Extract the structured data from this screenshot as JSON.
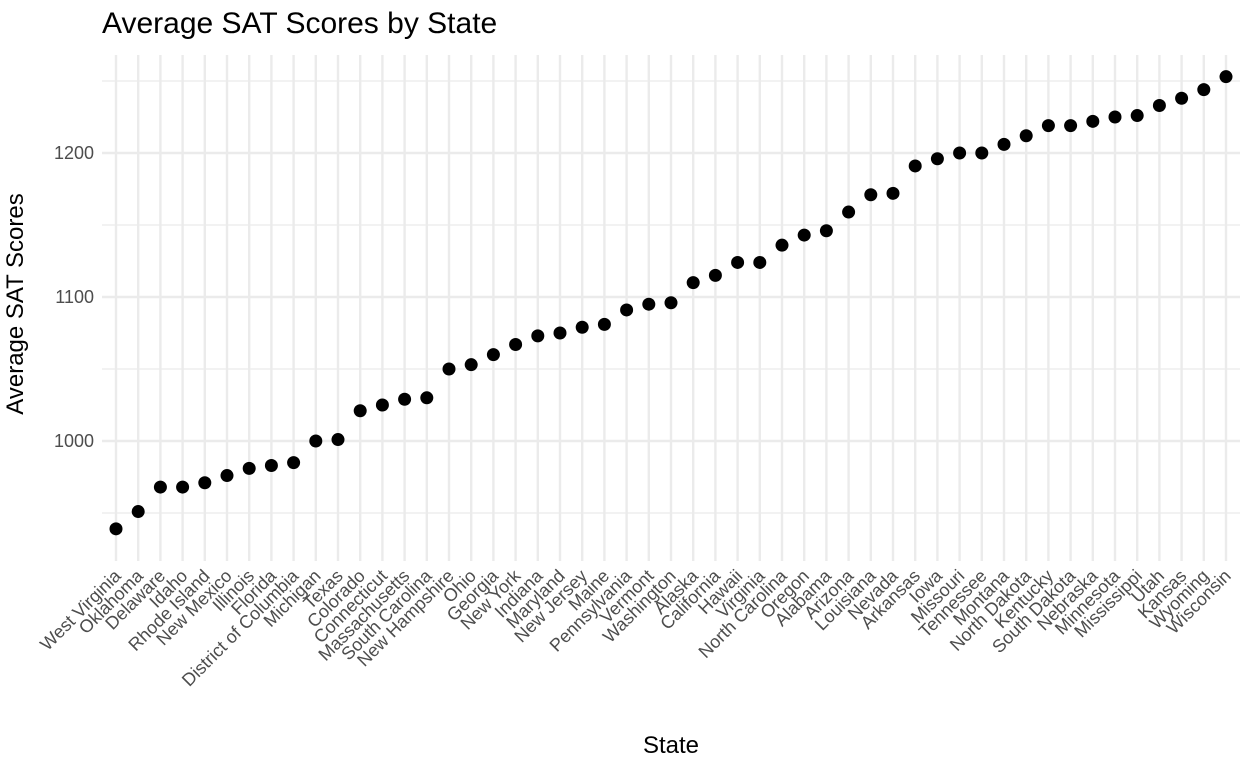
{
  "chart_data": {
    "type": "scatter",
    "title": "Average SAT Scores by State",
    "xlabel": "State",
    "ylabel": "Average SAT Scores",
    "y_ticks": [
      1000,
      1100,
      1200
    ],
    "ylim": [
      925,
      1264
    ],
    "grid": true,
    "legend": "none",
    "point_color": "#000000",
    "grid_color": "#ebebeb",
    "categories": [
      "West Virginia",
      "Oklahoma",
      "Delaware",
      "Idaho",
      "Rhode Island",
      "New Mexico",
      "Illinois",
      "Florida",
      "District of Columbia",
      "Michigan",
      "Texas",
      "Colorado",
      "Connecticut",
      "Massachusetts",
      "South Carolina",
      "New Hampshire",
      "Ohio",
      "Georgia",
      "New York",
      "Indiana",
      "Maryland",
      "New Jersey",
      "Maine",
      "Pennsylvania",
      "Vermont",
      "Washington",
      "Alaska",
      "California",
      "Hawaii",
      "Virginia",
      "North Carolina",
      "Oregon",
      "Alabama",
      "Arizona",
      "Louisiana",
      "Nevada",
      "Arkansas",
      "Iowa",
      "Missouri",
      "Tennessee",
      "Montana",
      "North Dakota",
      "Kentucky",
      "South Dakota",
      "Nebraska",
      "Minnesota",
      "Mississippi",
      "Utah",
      "Kansas",
      "Wyoming",
      "Wisconsin"
    ],
    "values": [
      939,
      951,
      968,
      968,
      971,
      976,
      981,
      983,
      985,
      1000,
      1001,
      1021,
      1025,
      1029,
      1030,
      1050,
      1053,
      1060,
      1067,
      1073,
      1075,
      1079,
      1081,
      1091,
      1095,
      1096,
      1110,
      1115,
      1124,
      1124,
      1136,
      1143,
      1146,
      1159,
      1171,
      1172,
      1191,
      1196,
      1200,
      1200,
      1206,
      1212,
      1219,
      1219,
      1222,
      1225,
      1226,
      1233,
      1238,
      1244,
      1253
    ]
  }
}
